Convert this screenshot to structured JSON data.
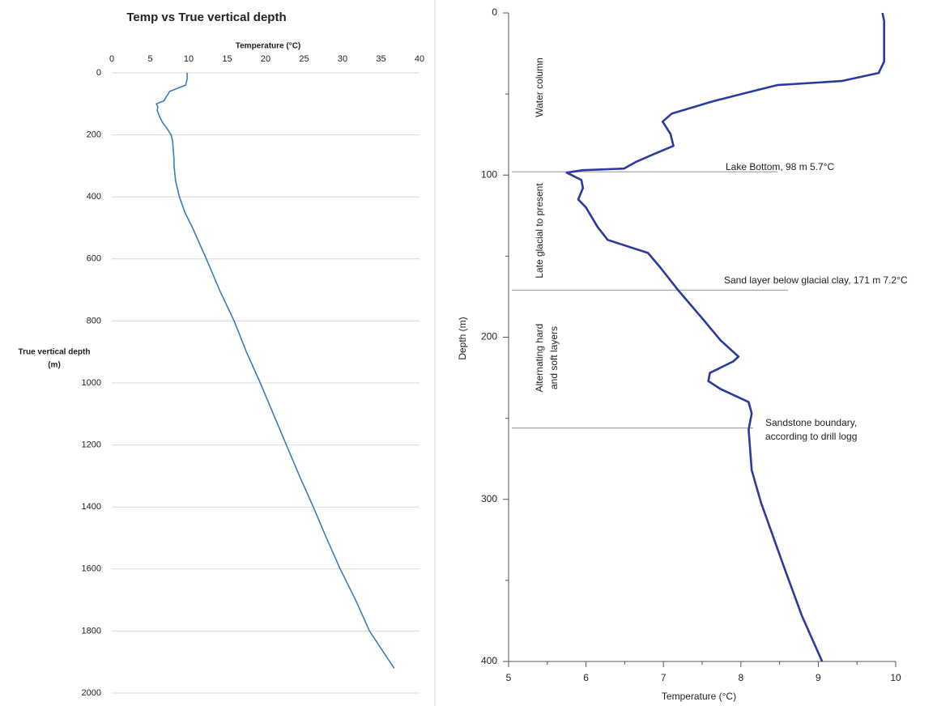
{
  "chart_data": [
    {
      "type": "line",
      "title": "Temp vs True vertical depth",
      "xlabel": "Temperature (°C)",
      "ylabel_lines": [
        "True vertical depth",
        "(m)"
      ],
      "xlim": [
        0,
        40
      ],
      "xticks": [
        0,
        5,
        10,
        15,
        20,
        25,
        30,
        35,
        40
      ],
      "ylim": [
        0,
        2000
      ],
      "yticks": [
        0,
        200,
        400,
        600,
        800,
        1000,
        1200,
        1400,
        1600,
        1800,
        2000
      ],
      "y_reversed": true,
      "grid": true,
      "x_axis_position": "top",
      "series": [
        {
          "color": "#3a7cc0",
          "depth": [
            0,
            20,
            40,
            50,
            60,
            70,
            80,
            90,
            100,
            110,
            120,
            140,
            160,
            180,
            200,
            220,
            250,
            280,
            300,
            350,
            400,
            450,
            500,
            600,
            700,
            800,
            900,
            1000,
            1100,
            1200,
            1300,
            1400,
            1500,
            1600,
            1700,
            1800,
            1920
          ],
          "values": [
            9.8,
            9.8,
            9.6,
            8.5,
            7.5,
            7.3,
            7.0,
            6.8,
            5.8,
            6.0,
            5.9,
            6.2,
            6.6,
            7.2,
            7.7,
            7.9,
            8.0,
            8.1,
            8.1,
            8.3,
            8.8,
            9.5,
            10.5,
            12.3,
            14.0,
            15.9,
            17.5,
            19.3,
            21.0,
            22.7,
            24.4,
            26.2,
            27.9,
            29.7,
            31.7,
            33.5,
            36.7
          ]
        }
      ]
    },
    {
      "type": "line",
      "xlabel": "Temperature (°C)",
      "ylabel": "Depth (m)",
      "xlim": [
        5,
        10
      ],
      "xticks": [
        5,
        6,
        7,
        8,
        9,
        10
      ],
      "xminorticks": [
        5.5,
        6.5,
        7.5,
        8.5,
        9.5
      ],
      "ylim": [
        0,
        400
      ],
      "yticks": [
        0,
        100,
        200,
        300,
        400
      ],
      "yminorticks": [
        50,
        150,
        250,
        350
      ],
      "y_reversed": true,
      "grid": false,
      "x_axis_position": "bottom",
      "series": [
        {
          "color": "#2b3a9e",
          "depth": [
            0,
            5,
            15,
            30,
            37,
            42,
            44.5,
            49.5,
            54.5,
            62,
            67,
            74.5,
            82,
            87,
            92,
            96,
            97,
            98.5,
            103,
            108,
            115,
            120,
            132,
            140,
            148,
            157,
            171,
            190,
            202,
            212,
            215,
            222,
            227,
            232,
            240,
            247,
            257,
            282,
            302,
            342,
            372,
            400
          ],
          "values": [
            9.83,
            9.85,
            9.85,
            9.85,
            9.78,
            9.3,
            8.47,
            8.05,
            7.64,
            7.11,
            6.99,
            7.09,
            7.13,
            6.88,
            6.64,
            6.49,
            5.96,
            5.75,
            5.94,
            5.96,
            5.9,
            6.0,
            6.15,
            6.28,
            6.8,
            6.96,
            7.19,
            7.53,
            7.74,
            7.97,
            7.9,
            7.6,
            7.58,
            7.74,
            8.1,
            8.14,
            8.1,
            8.14,
            8.26,
            8.56,
            8.79,
            9.05
          ]
        }
      ],
      "annotations": [
        {
          "depth": 98,
          "lines": [
            "Lake Bottom, 98 m 5.7°C"
          ]
        },
        {
          "depth": 171,
          "lines": [
            "Sand layer below glacial clay, 171 m 7.2°C"
          ]
        },
        {
          "depth": 256,
          "lines": [
            "Sandstone boundary,",
            "according to drill logg"
          ]
        }
      ],
      "zones": [
        {
          "lines": [
            "Water column"
          ]
        },
        {
          "lines": [
            "Late glacial to present"
          ]
        },
        {
          "lines": [
            "Alternating hard",
            "and soft layers"
          ]
        }
      ]
    }
  ]
}
